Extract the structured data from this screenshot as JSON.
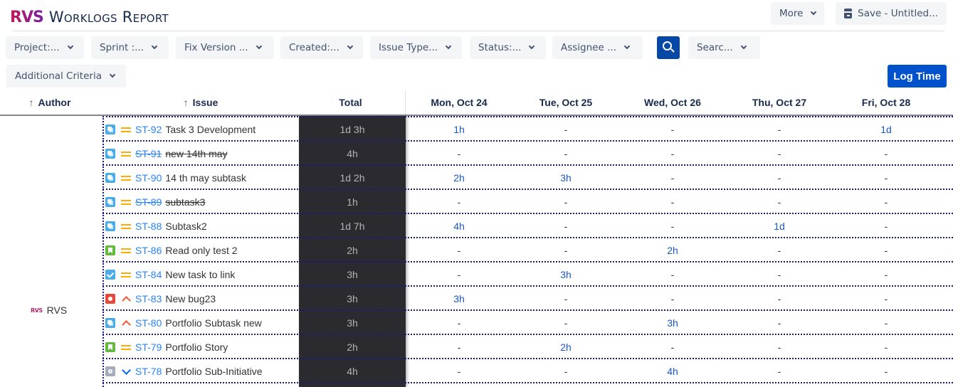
{
  "header": {
    "logo": "RVS",
    "title": "Worklogs Report",
    "more_label": "More",
    "save_label": "Save - Untitled..."
  },
  "filters": [
    {
      "label": "Project:..."
    },
    {
      "label": "Sprint :..."
    },
    {
      "label": "Fix Version ..."
    },
    {
      "label": "Created:..."
    },
    {
      "label": "Issue Type..."
    },
    {
      "label": "Status:..."
    },
    {
      "label": "Assignee ..."
    },
    {
      "label": "Searc..."
    },
    {
      "label": "Additional Criteria"
    }
  ],
  "log_time_label": "Log Time",
  "table": {
    "columns": {
      "author": "Author",
      "issue": "Issue",
      "total": "Total",
      "days": [
        "Mon, Oct 24",
        "Tue, Oct 25",
        "Wed, Oct 26",
        "Thu, Oct 27",
        "Fri, Oct 28"
      ]
    },
    "sort_arrow": "↑",
    "author": {
      "name": "RVS",
      "logo": "RVS"
    },
    "rows": [
      {
        "type": "subtask",
        "priority": "medium",
        "key": "ST-92",
        "summary": "Task 3 Development",
        "done": false,
        "total": "1d 3h",
        "days": [
          "1h",
          "-",
          "-",
          "-",
          "1d"
        ]
      },
      {
        "type": "subtask",
        "priority": "medium",
        "key": "ST-91",
        "summary": "new 14th may",
        "done": true,
        "total": "4h",
        "days": [
          "-",
          "-",
          "-",
          "-",
          "-"
        ]
      },
      {
        "type": "subtask",
        "priority": "medium",
        "key": "ST-90",
        "summary": "14 th may subtask",
        "done": false,
        "total": "1d 2h",
        "days": [
          "2h",
          "3h",
          "-",
          "-",
          "-"
        ]
      },
      {
        "type": "subtask",
        "priority": "medium",
        "key": "ST-89",
        "summary": "subtask3",
        "done": true,
        "total": "1h",
        "days": [
          "-",
          "-",
          "-",
          "-",
          "-"
        ]
      },
      {
        "type": "subtask",
        "priority": "medium",
        "key": "ST-88",
        "summary": "Subtask2",
        "done": false,
        "total": "1d 7h",
        "days": [
          "4h",
          "-",
          "-",
          "1d",
          "-"
        ]
      },
      {
        "type": "story",
        "priority": "medium",
        "key": "ST-86",
        "summary": "Read only test 2",
        "done": false,
        "total": "2h",
        "days": [
          "-",
          "-",
          "2h",
          "-",
          "-"
        ]
      },
      {
        "type": "task",
        "priority": "medium",
        "key": "ST-84",
        "summary": "New task to link",
        "done": false,
        "total": "3h",
        "days": [
          "-",
          "3h",
          "-",
          "-",
          "-"
        ]
      },
      {
        "type": "bug",
        "priority": "high",
        "key": "ST-83",
        "summary": "New bug23",
        "done": false,
        "total": "3h",
        "days": [
          "3h",
          "-",
          "-",
          "-",
          "-"
        ]
      },
      {
        "type": "subtask",
        "priority": "high",
        "key": "ST-80",
        "summary": "Portfolio Subtask new",
        "done": false,
        "total": "3h",
        "days": [
          "-",
          "-",
          "3h",
          "-",
          "-"
        ]
      },
      {
        "type": "story",
        "priority": "medium",
        "key": "ST-79",
        "summary": "Portfolio Story",
        "done": false,
        "total": "2h",
        "days": [
          "-",
          "2h",
          "-",
          "-",
          "-"
        ]
      },
      {
        "type": "initiative",
        "priority": "low",
        "key": "ST-78",
        "summary": "Portfolio Sub-Initiative",
        "done": false,
        "total": "4h",
        "days": [
          "-",
          "-",
          "4h",
          "-",
          "-"
        ]
      }
    ]
  },
  "colors": {
    "primary": "#0052cc",
    "search_button": "#0747a6",
    "total_column_bg": "#2b2a2f",
    "link": "#2684ff"
  }
}
